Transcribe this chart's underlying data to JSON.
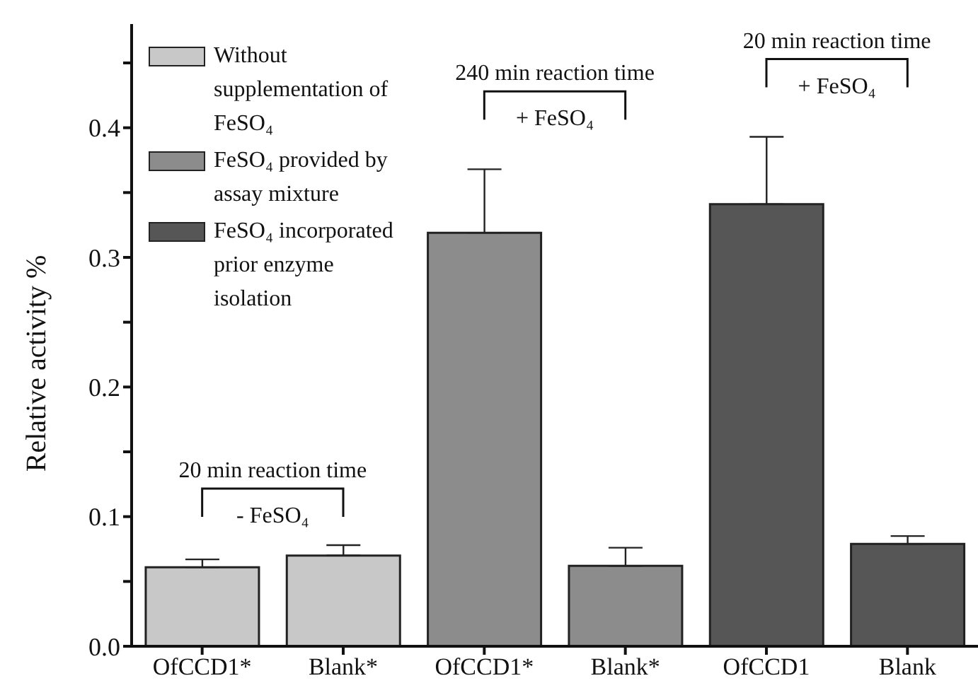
{
  "chart_data": {
    "type": "bar",
    "stacked": true,
    "ylabel": "Relative activity %",
    "categories": [
      "OfCCD1*",
      "Blank*",
      "OfCCD1*",
      "Blank*",
      "OfCCD1",
      "Blank"
    ],
    "series": [
      {
        "name": "Without supplementation of FeSO₄",
        "color": "#c8c8c8",
        "values": [
          0.061,
          0.07,
          null,
          null,
          null,
          null
        ],
        "errors": [
          [
            0.061,
            0.067
          ],
          [
            0.07,
            0.078
          ],
          null,
          null,
          null,
          null
        ]
      },
      {
        "name": "FeSO₄ provided by assay  mixture",
        "color": "#8c8c8c",
        "values": [
          null,
          null,
          0.319,
          0.062,
          null,
          null
        ],
        "errors": [
          null,
          null,
          [
            0.319,
            0.368
          ],
          [
            0.062,
            0.076
          ],
          null,
          null
        ]
      },
      {
        "name": "FeSO₄ incorporated prior enzyme isolation",
        "color": "#565656",
        "values": [
          null,
          null,
          null,
          null,
          0.341,
          0.079
        ],
        "errors": [
          null,
          null,
          null,
          null,
          [
            0.341,
            0.393
          ],
          [
            0.079,
            0.085
          ]
        ]
      }
    ],
    "ylim": [
      0,
      0.48
    ],
    "yticks": [
      {
        "value": 0,
        "label": "0.0"
      },
      {
        "value": 0.05,
        "label": null
      },
      0.1,
      {
        "value": 0.15,
        "label": null
      },
      0.2,
      {
        "value": 0.25,
        "label": null
      },
      0.3,
      {
        "value": 0.35,
        "label": null
      },
      0.4,
      {
        "value": 0.45,
        "label": null
      }
    ],
    "legend": "top left",
    "grid": false,
    "annotations": [
      "20 min reaction time",
      "- FeSO₄",
      "240 min reaction time",
      "+ FeSO₄",
      "20 min reaction time",
      "+ FeSO₄"
    ]
  }
}
